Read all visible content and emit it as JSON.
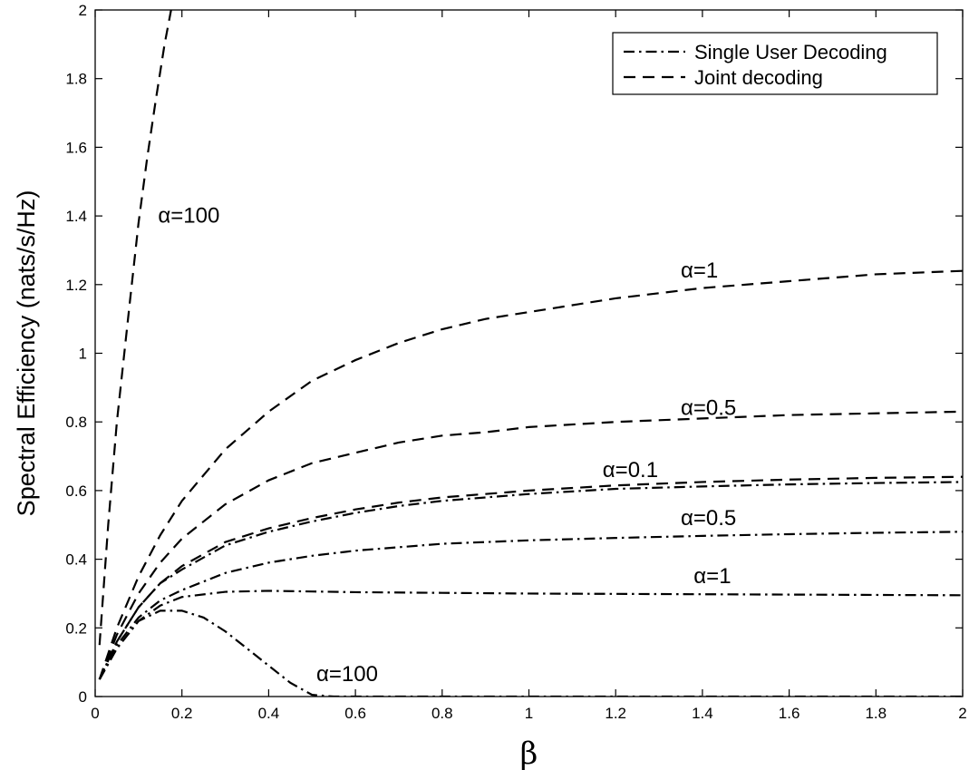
{
  "chart_data": {
    "type": "line",
    "title": "",
    "xlabel": "β",
    "ylabel": "Spectral Efficiency (nats/s/Hz)",
    "xlim": [
      0,
      2
    ],
    "ylim": [
      0,
      2
    ],
    "xticks": [
      0,
      0.2,
      0.4,
      0.6,
      0.8,
      1,
      1.2,
      1.4,
      1.6,
      1.8,
      2
    ],
    "xtick_labels": [
      "0",
      "0.2",
      "0.4",
      "0.6",
      "0.8",
      "1",
      "1.2",
      "1.4",
      "1.6",
      "1.8",
      "2"
    ],
    "yticks": [
      0,
      0.2,
      0.4,
      0.6,
      0.8,
      1,
      1.2,
      1.4,
      1.6,
      1.8,
      2
    ],
    "ytick_labels": [
      "0",
      "0.2",
      "0.4",
      "0.6",
      "0.8",
      "1",
      "1.2",
      "1.4",
      "1.6",
      "1.8",
      "2"
    ],
    "grid": false,
    "legend": {
      "placement": "top-right",
      "entries": [
        {
          "label": "Single User Decoding",
          "style": "dash-dot"
        },
        {
          "label": "Joint decoding",
          "style": "dashed"
        }
      ]
    },
    "series": [
      {
        "decoding": "Joint decoding",
        "style": "dashed",
        "alpha": "α=100",
        "x": [
          0.01,
          0.03,
          0.05,
          0.08,
          0.1,
          0.12,
          0.14,
          0.16,
          0.175
        ],
        "y": [
          0.15,
          0.5,
          0.8,
          1.15,
          1.38,
          1.57,
          1.74,
          1.9,
          2.0
        ]
      },
      {
        "decoding": "Joint decoding",
        "style": "dashed",
        "alpha": "α=1",
        "x": [
          0.01,
          0.05,
          0.1,
          0.15,
          0.2,
          0.3,
          0.4,
          0.5,
          0.6,
          0.7,
          0.8,
          0.9,
          1.0,
          1.2,
          1.4,
          1.6,
          1.8,
          2.0
        ],
        "y": [
          0.05,
          0.2,
          0.35,
          0.47,
          0.57,
          0.72,
          0.83,
          0.92,
          0.98,
          1.03,
          1.07,
          1.1,
          1.12,
          1.16,
          1.19,
          1.21,
          1.23,
          1.24
        ]
      },
      {
        "decoding": "Joint decoding",
        "style": "dashed",
        "alpha": "α=0.5",
        "x": [
          0.01,
          0.05,
          0.1,
          0.15,
          0.2,
          0.3,
          0.4,
          0.5,
          0.6,
          0.7,
          0.8,
          0.9,
          1.0,
          1.2,
          1.4,
          1.6,
          1.8,
          2.0
        ],
        "y": [
          0.05,
          0.18,
          0.3,
          0.39,
          0.46,
          0.56,
          0.63,
          0.68,
          0.71,
          0.74,
          0.76,
          0.77,
          0.785,
          0.8,
          0.81,
          0.82,
          0.825,
          0.83
        ]
      },
      {
        "decoding": "Joint decoding",
        "style": "dashed",
        "alpha": "α=0.1",
        "x": [
          0.01,
          0.05,
          0.1,
          0.15,
          0.2,
          0.3,
          0.4,
          0.5,
          0.6,
          0.7,
          0.8,
          0.9,
          1.0,
          1.2,
          1.4,
          1.6,
          1.8,
          2.0
        ],
        "y": [
          0.05,
          0.16,
          0.26,
          0.33,
          0.38,
          0.45,
          0.49,
          0.52,
          0.545,
          0.565,
          0.58,
          0.59,
          0.6,
          0.615,
          0.625,
          0.632,
          0.637,
          0.64
        ]
      },
      {
        "decoding": "Single User Decoding",
        "style": "dash-dot",
        "alpha": "α=0.1",
        "x": [
          0.01,
          0.05,
          0.1,
          0.15,
          0.2,
          0.3,
          0.4,
          0.5,
          0.6,
          0.7,
          0.8,
          0.9,
          1.0,
          1.2,
          1.4,
          1.6,
          1.8,
          2.0
        ],
        "y": [
          0.05,
          0.16,
          0.26,
          0.33,
          0.37,
          0.44,
          0.48,
          0.51,
          0.535,
          0.555,
          0.57,
          0.58,
          0.59,
          0.605,
          0.612,
          0.618,
          0.622,
          0.625
        ]
      },
      {
        "decoding": "Single User Decoding",
        "style": "dash-dot",
        "alpha": "α=0.5",
        "x": [
          0.01,
          0.05,
          0.1,
          0.15,
          0.2,
          0.3,
          0.4,
          0.5,
          0.6,
          0.7,
          0.8,
          0.9,
          1.0,
          1.2,
          1.4,
          1.6,
          1.8,
          2.0
        ],
        "y": [
          0.05,
          0.15,
          0.23,
          0.28,
          0.31,
          0.36,
          0.39,
          0.41,
          0.425,
          0.435,
          0.445,
          0.45,
          0.455,
          0.462,
          0.468,
          0.473,
          0.477,
          0.48
        ]
      },
      {
        "decoding": "Single User Decoding",
        "style": "dash-dot",
        "alpha": "α=1",
        "x": [
          0.01,
          0.05,
          0.1,
          0.15,
          0.2,
          0.3,
          0.4,
          0.5,
          0.6,
          0.8,
          1.0,
          1.2,
          1.4,
          1.6,
          1.8,
          2.0
        ],
        "y": [
          0.05,
          0.14,
          0.22,
          0.265,
          0.29,
          0.305,
          0.308,
          0.306,
          0.304,
          0.302,
          0.3,
          0.299,
          0.298,
          0.297,
          0.296,
          0.295
        ]
      },
      {
        "decoding": "Single User Decoding",
        "style": "dash-dot",
        "alpha": "α=100",
        "x": [
          0.01,
          0.05,
          0.1,
          0.15,
          0.2,
          0.25,
          0.3,
          0.35,
          0.4,
          0.45,
          0.5,
          0.55,
          0.7,
          1.0,
          1.5,
          2.0
        ],
        "y": [
          0.05,
          0.14,
          0.22,
          0.25,
          0.25,
          0.23,
          0.19,
          0.14,
          0.09,
          0.04,
          0.005,
          0.0,
          0.0,
          0.0,
          0.0,
          0.0
        ]
      }
    ],
    "annotations": [
      {
        "text": "α=100",
        "x": 0.145,
        "y": 1.38
      },
      {
        "text": "α=1",
        "x": 1.35,
        "y": 1.22
      },
      {
        "text": "α=0.5",
        "x": 1.35,
        "y": 0.82
      },
      {
        "text": "α=0.1",
        "x": 1.17,
        "y": 0.64
      },
      {
        "text": "α=0.5",
        "x": 1.35,
        "y": 0.5
      },
      {
        "text": "α=1",
        "x": 1.38,
        "y": 0.33
      },
      {
        "text": "α=100",
        "x": 0.51,
        "y": 0.045
      }
    ]
  }
}
